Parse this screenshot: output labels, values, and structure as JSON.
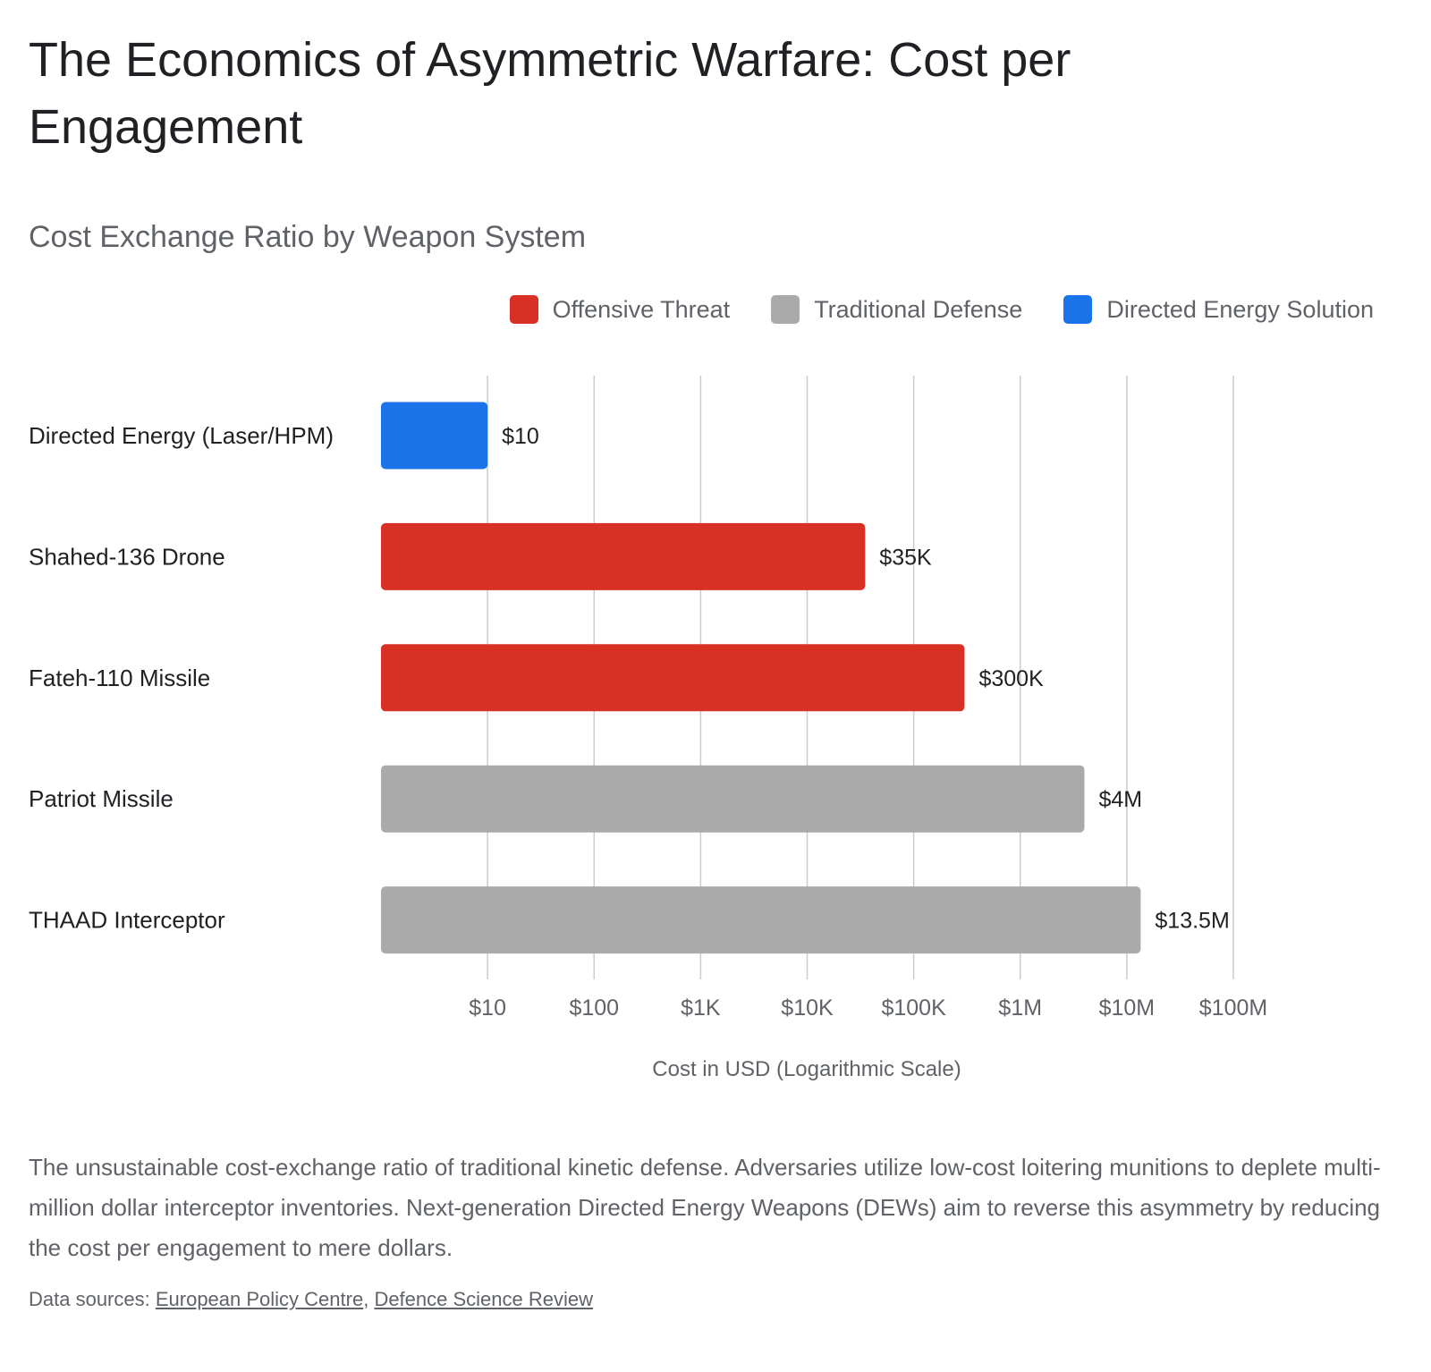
{
  "title": "The Economics of Asymmetric Warfare: Cost per Engagement",
  "subtitle": "Cost Exchange Ratio by Weapon System",
  "legend": [
    {
      "label": "Offensive Threat",
      "color": "#d93025"
    },
    {
      "label": "Traditional Defense",
      "color": "#aaaaaa"
    },
    {
      "label": "Directed Energy Solution",
      "color": "#1a73e8"
    }
  ],
  "chart_data": {
    "type": "bar",
    "orientation": "horizontal",
    "categories": [
      "Directed Energy (Laser/HPM)",
      "Shahed-136 Drone",
      "Fateh-110 Missile",
      "Patriot Missile",
      "THAAD Interceptor"
    ],
    "values": [
      10,
      35000,
      300000,
      4000000,
      13500000
    ],
    "data_labels": [
      "$10",
      "$35K",
      "$300K",
      "$4M",
      "$13.5M"
    ],
    "groups": [
      "Directed Energy Solution",
      "Offensive Threat",
      "Offensive Threat",
      "Traditional Defense",
      "Traditional Defense"
    ],
    "xlabel": "Cost in USD (Logarithmic Scale)",
    "xscale": "log",
    "xlim": [
      1,
      100000000
    ],
    "xticks": [
      10,
      100,
      1000,
      10000,
      100000,
      1000000,
      10000000,
      100000000
    ],
    "xtick_labels": [
      "$10",
      "$100",
      "$1K",
      "$10K",
      "$100K",
      "$1M",
      "$10M",
      "$100M"
    ],
    "grid": "vertical",
    "legend_position": "top-right"
  },
  "caption": "The unsustainable cost-exchange ratio of traditional kinetic defense. Adversaries utilize low-cost loitering munitions to deplete multi-million dollar interceptor inventories. Next-generation Directed Energy Weapons (DEWs) aim to reverse this asymmetry by reducing the cost per engagement to mere dollars.",
  "sources": {
    "prefix": "Data sources: ",
    "links": [
      "European Policy Centre",
      "Defence Science Review"
    ],
    "separator": ", "
  }
}
